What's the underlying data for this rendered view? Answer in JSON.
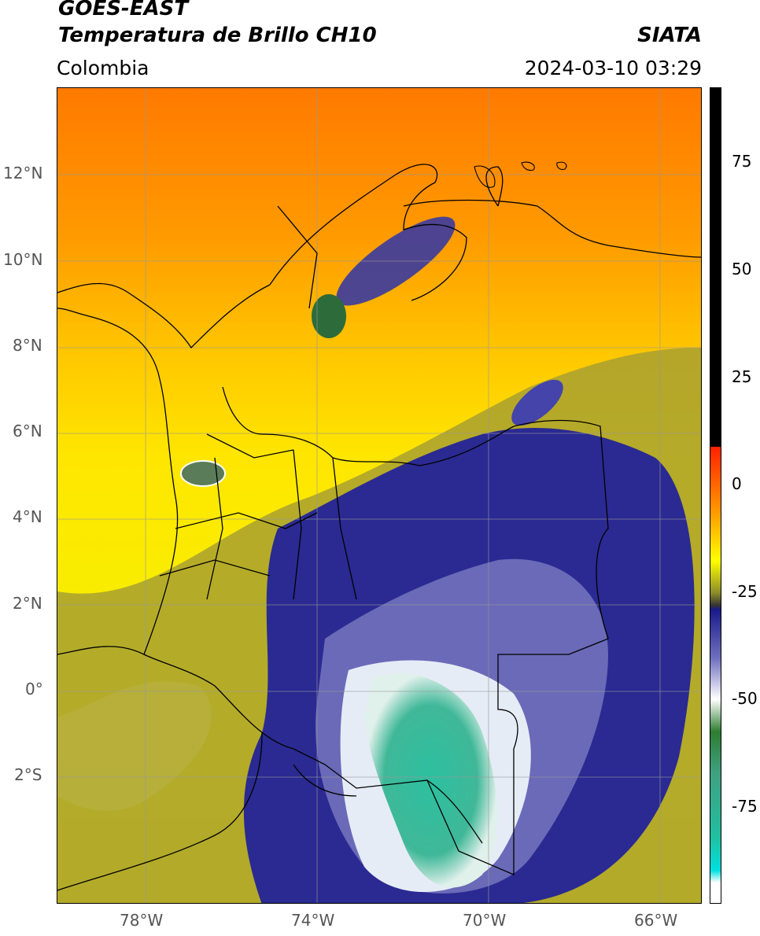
{
  "header": {
    "satellite": "GOES-EAST",
    "product": "Temperatura de Brillo CH10",
    "region": "Colombia",
    "org": "SIATA",
    "datetime": "2024-03-10 03:29"
  },
  "map": {
    "lat_labels": [
      "12°N",
      "10°N",
      "8°N",
      "6°N",
      "4°N",
      "2°N",
      "0°",
      "2°S"
    ],
    "lon_labels": [
      "78°W",
      "74°W",
      "70°W",
      "66°W"
    ]
  },
  "colorbar": {
    "ticks": [
      "75",
      "50",
      "25",
      "0",
      "-25",
      "-50",
      "-75"
    ],
    "colors": {
      "black": "#000000",
      "red": "#ff2000",
      "orange": "#ff9900",
      "yellow": "#ffff00",
      "olive": "#8a8a2a",
      "navy": "#1a1a8a",
      "white": "#ffffff",
      "green": "#2e7d32",
      "teal": "#20c0a0",
      "cyan": "#00e0e0"
    }
  }
}
